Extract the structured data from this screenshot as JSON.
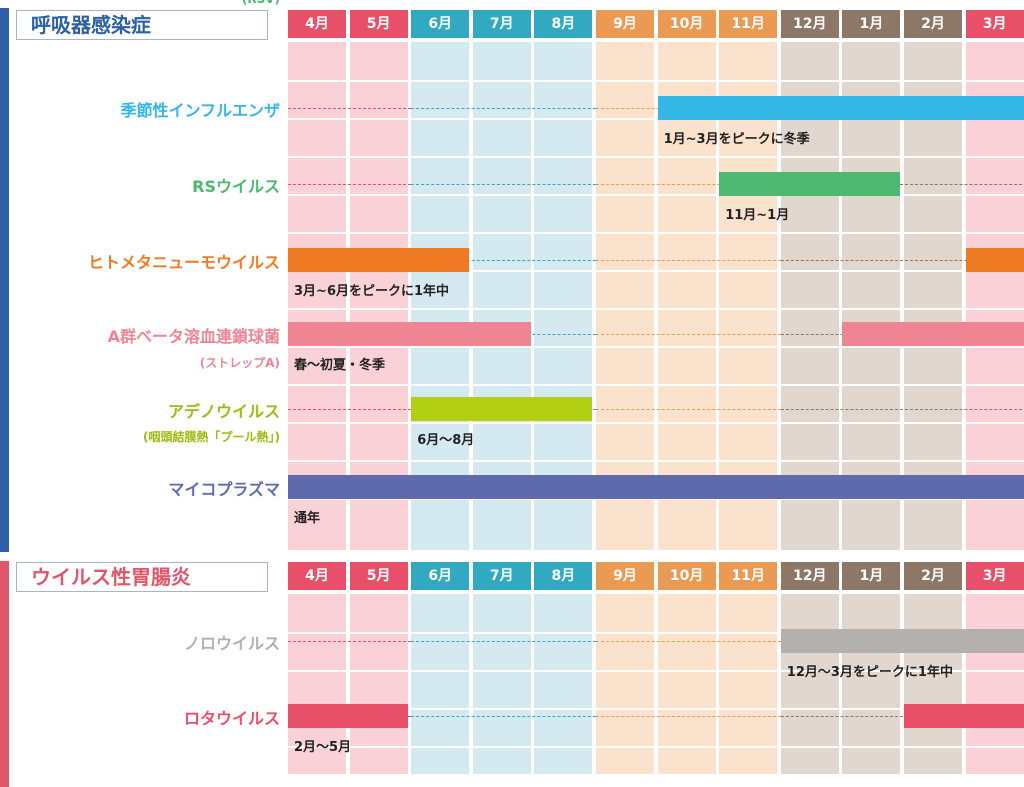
{
  "chart_data": [
    {
      "type": "table",
      "section_title": "呼吸器感染症",
      "months": [
        "4月",
        "5月",
        "6月",
        "7月",
        "8月",
        "9月",
        "10月",
        "11月",
        "12月",
        "1月",
        "2月",
        "3月"
      ],
      "season_colors": {
        "spring": "#e8506a",
        "summer": "#31a9c0",
        "autumn": "#eb9a54",
        "winter": "#8d7766",
        "march": "#e8506a"
      },
      "rows": [
        {
          "name": "季節性インフルエンザ",
          "sub": "",
          "color": "#34b7e5",
          "peaks": [
            {
              "from": "10月",
              "to": "3月"
            }
          ],
          "note": "1月~3月をピークに冬季"
        },
        {
          "name": "RSウイルス",
          "sub": "(RSV)",
          "color": "#4db86f",
          "peaks": [
            {
              "from": "11月",
              "to": "1月"
            }
          ],
          "note": "11月~1月"
        },
        {
          "name": "ヒトメタニューモウイルス",
          "sub": "",
          "color": "#ee7a24",
          "peaks": [
            {
              "from": "4月",
              "to": "6月"
            },
            {
              "from": "3月",
              "to": "3月"
            }
          ],
          "note": "3月~6月をピークに1年中"
        },
        {
          "name": "A群ベータ溶血連鎖球菌",
          "sub": "(ストレップA)",
          "color": "#ef8593",
          "peaks": [
            {
              "from": "4月",
              "to": "7月"
            },
            {
              "from": "1月",
              "to": "3月"
            }
          ],
          "note": "春～初夏・冬季"
        },
        {
          "name": "アデノウイルス",
          "sub": "(咽頭結膜熱「プール熱」)",
          "color": "#b3cf12",
          "peaks": [
            {
              "from": "6月",
              "to": "8月"
            }
          ],
          "note": "6月～8月"
        },
        {
          "name": "マイコプラズマ",
          "sub": "",
          "color": "#5f6aac",
          "peaks": [
            {
              "from": "4月",
              "to": "3月"
            }
          ],
          "note": "通年"
        }
      ]
    },
    {
      "type": "table",
      "section_title": "ウイルス性胃腸炎",
      "months": [
        "4月",
        "5月",
        "6月",
        "7月",
        "8月",
        "9月",
        "10月",
        "11月",
        "12月",
        "1月",
        "2月",
        "3月"
      ],
      "rows": [
        {
          "name": "ノロウイルス",
          "sub": "",
          "color": "#b3b0ad",
          "peaks": [
            {
              "from": "12月",
              "to": "3月"
            }
          ],
          "note": "12月～3月をピークに1年中"
        },
        {
          "name": "ロタウイルス",
          "sub": "",
          "color": "#e8506a",
          "peaks": [
            {
              "from": "4月",
              "to": "5月"
            },
            {
              "from": "2月",
              "to": "3月"
            }
          ],
          "note": "2月～5月"
        }
      ]
    }
  ],
  "theme": {
    "respiratory_title_color": "#2d5fa4",
    "respiratory_bar_color": "#2d5fa4",
    "gastro_title_color": "#e0566b",
    "gastro_bar_color": "#e0566b",
    "cell_colors": {
      "spring": "#f9d1d6",
      "summer": "#d5eaf0",
      "autumn": "#fbe2cc",
      "winter": "#e2d7cf",
      "march": "#f9d1d6"
    },
    "dash_colors": {
      "spring": "#e8506a",
      "summer": "#31a9c0",
      "autumn": "#eb9a54",
      "winter": "#8d7766"
    },
    "row_name_colors": [
      "#34b7e5",
      "#4db86f",
      "#ee7a24",
      "#ef8593",
      "#9fba10",
      "#5f6aac",
      "#b3b0ad",
      "#e8506a"
    ]
  }
}
